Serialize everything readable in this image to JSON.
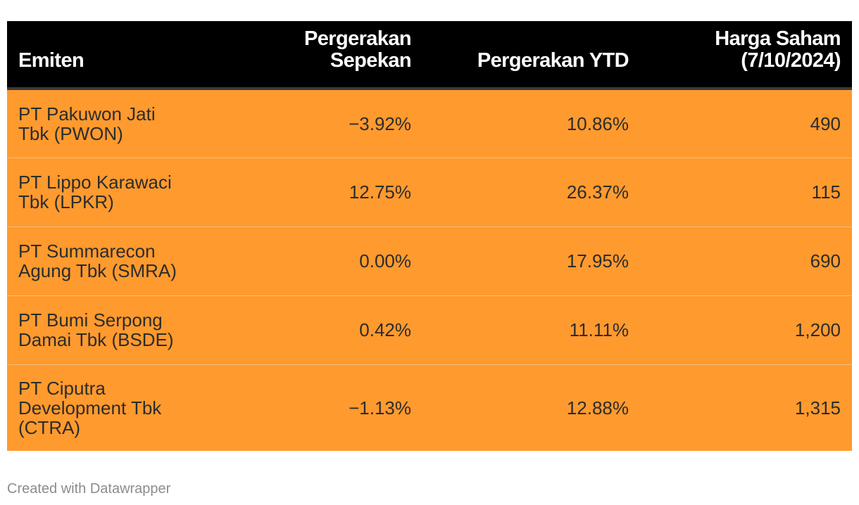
{
  "chart_data": {
    "type": "table",
    "columns": [
      "Emiten",
      "Pergerakan Sepekan",
      "Pergerakan YTD",
      "Harga Saham (7/10/2024)"
    ],
    "header_lines": [
      [
        "Emiten"
      ],
      [
        "Pergerakan",
        "Sepekan"
      ],
      [
        "Pergerakan YTD"
      ],
      [
        "Harga Saham",
        "(7/10/2024)"
      ]
    ],
    "rows": [
      {
        "name_lines": [
          "PT Pakuwon Jati",
          "Tbk (PWON)"
        ],
        "week": "−3.92%",
        "ytd": "10.86%",
        "price": "490"
      },
      {
        "name_lines": [
          "PT Lippo Karawaci",
          "Tbk (LPKR)"
        ],
        "week": "12.75%",
        "ytd": "26.37%",
        "price": "115"
      },
      {
        "name_lines": [
          "PT Summarecon",
          "Agung Tbk (SMRA)"
        ],
        "week": "0.00%",
        "ytd": "17.95%",
        "price": "690"
      },
      {
        "name_lines": [
          "PT Bumi Serpong",
          "Damai Tbk (BSDE)"
        ],
        "week": "0.42%",
        "ytd": "11.11%",
        "price": "1,200"
      },
      {
        "name_lines": [
          "PT Ciputra",
          "Development Tbk",
          "(CTRA)"
        ],
        "week": "−1.13%",
        "ytd": "12.88%",
        "price": "1,315"
      }
    ],
    "header_background": "#000000",
    "row_background": "#ff9a2e"
  },
  "footer": {
    "credit": "Created with Datawrapper"
  }
}
